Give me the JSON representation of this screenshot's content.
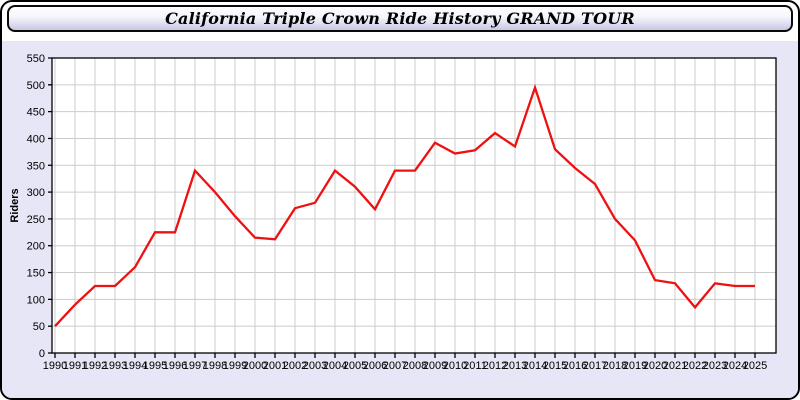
{
  "header": {
    "title": "California Triple Crown Ride History GRAND TOUR"
  },
  "colors": {
    "line": "#ee1111",
    "panel_bg": "#e6e6f6",
    "plot_bg": "#ffffff",
    "grid": "#cccccc",
    "axis": "#000000",
    "label_text": "#000000"
  },
  "chart_data": {
    "type": "line",
    "title": "California Triple Crown Ride History GRAND TOUR",
    "xlabel": "",
    "ylabel": "Riders",
    "x": [
      1990,
      1991,
      1992,
      1993,
      1994,
      1995,
      1996,
      1997,
      1998,
      1999,
      2000,
      2001,
      2002,
      2003,
      2004,
      2005,
      2006,
      2007,
      2008,
      2009,
      2010,
      2011,
      2012,
      2013,
      2014,
      2015,
      2016,
      2017,
      2018,
      2019,
      2020,
      2021,
      2022,
      2023,
      2024,
      2025
    ],
    "series": [
      {
        "name": "Riders",
        "color": "#ee1111",
        "values": [
          50,
          90,
          125,
          125,
          160,
          225,
          225,
          340,
          300,
          255,
          215,
          212,
          270,
          280,
          340,
          310,
          268,
          340,
          340,
          392,
          372,
          378,
          410,
          385,
          495,
          380,
          345,
          315,
          250,
          210,
          136,
          130,
          85,
          130,
          125,
          125
        ]
      }
    ],
    "ylim": [
      0,
      550
    ],
    "ytick_step": 50,
    "grid": true,
    "legend": false
  }
}
